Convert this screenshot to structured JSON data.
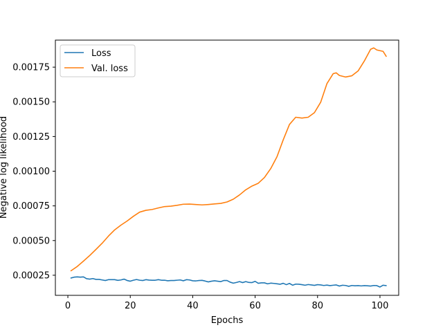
{
  "chart_data": {
    "type": "line",
    "title": "",
    "xlabel": "Epochs",
    "ylabel": "Negative log likelihood",
    "xlim": [
      -4,
      106
    ],
    "ylim": [
      0.000105,
      0.001945
    ],
    "xticks": [
      0,
      20,
      40,
      60,
      80,
      100
    ],
    "xtick_labels": [
      "0",
      "20",
      "40",
      "60",
      "80",
      "100"
    ],
    "yticks": [
      0.00025,
      0.0005,
      0.00075,
      0.001,
      0.00125,
      0.0015,
      0.00175
    ],
    "ytick_labels": [
      "0.00025",
      "0.00050",
      "0.00075",
      "0.00100",
      "0.00125",
      "0.00150",
      "0.00175"
    ],
    "grid": false,
    "legend_position": "top-left",
    "series": [
      {
        "name": "Loss",
        "color": "#1f77b4",
        "x": [
          1,
          2,
          3,
          4,
          5,
          6,
          7,
          8,
          9,
          10,
          11,
          12,
          13,
          14,
          15,
          16,
          17,
          18,
          19,
          20,
          21,
          22,
          23,
          24,
          25,
          26,
          27,
          28,
          29,
          30,
          31,
          32,
          33,
          34,
          35,
          36,
          37,
          38,
          39,
          40,
          41,
          42,
          43,
          44,
          45,
          46,
          47,
          48,
          49,
          50,
          51,
          52,
          53,
          54,
          55,
          56,
          57,
          58,
          59,
          60,
          61,
          62,
          63,
          64,
          65,
          66,
          67,
          68,
          69,
          70,
          71,
          72,
          73,
          74,
          75,
          76,
          77,
          78,
          79,
          80,
          81,
          82,
          83,
          84,
          85,
          86,
          87,
          88,
          89,
          90,
          91,
          92,
          93,
          94,
          95,
          96,
          97,
          98,
          99,
          100,
          101,
          102
        ],
        "y": [
          0.00023,
          0.000236,
          0.000238,
          0.000236,
          0.000238,
          0.000225,
          0.000222,
          0.000226,
          0.00022,
          0.00022,
          0.000216,
          0.000212,
          0.000218,
          0.000218,
          0.000218,
          0.000213,
          0.000216,
          0.000222,
          0.000212,
          0.000207,
          0.000214,
          0.000219,
          0.000214,
          0.000212,
          0.000218,
          0.000215,
          0.000214,
          0.000214,
          0.000218,
          0.000214,
          0.000214,
          0.00021,
          0.000212,
          0.000212,
          0.000214,
          0.000216,
          0.00021,
          0.000218,
          0.000216,
          0.00021,
          0.000209,
          0.000212,
          0.000213,
          0.000208,
          0.000202,
          0.000207,
          0.00021,
          0.000207,
          0.000204,
          0.000212,
          0.000212,
          0.0002,
          0.000193,
          0.000198,
          0.000204,
          0.000197,
          0.000204,
          0.000198,
          0.000197,
          0.000206,
          0.000192,
          0.000195,
          0.000195,
          0.000188,
          0.000193,
          0.000191,
          0.000188,
          0.000185,
          0.000192,
          0.000182,
          0.000191,
          0.000178,
          0.000186,
          0.000185,
          0.000182,
          0.000178,
          0.000183,
          0.00018,
          0.000177,
          0.000182,
          0.00018,
          0.000176,
          0.000179,
          0.000175,
          0.000178,
          0.00018,
          0.000172,
          0.000178,
          0.000176,
          0.00017,
          0.000176,
          0.000174,
          0.000175,
          0.000173,
          0.000175,
          0.000174,
          0.000172,
          0.000176,
          0.000175,
          0.000165,
          0.000178,
          0.000175
        ]
      },
      {
        "name": "Val. loss",
        "color": "#ff7f0e",
        "x": [
          1,
          3,
          5,
          7,
          9,
          11,
          13,
          15,
          17,
          19,
          21,
          23,
          25,
          27,
          29,
          31,
          33,
          35,
          37,
          39,
          41,
          43,
          45,
          47,
          49,
          51,
          53,
          55,
          57,
          59,
          61,
          63,
          65,
          67,
          69,
          71,
          73,
          75,
          77,
          79,
          81,
          83,
          85,
          86,
          87,
          89,
          91,
          93,
          95,
          97,
          98,
          99,
          101,
          102
        ],
        "y": [
          0.000282,
          0.000313,
          0.000352,
          0.000392,
          0.000436,
          0.000481,
          0.000532,
          0.000577,
          0.000611,
          0.000641,
          0.000675,
          0.000705,
          0.000718,
          0.000724,
          0.000735,
          0.000745,
          0.000748,
          0.000754,
          0.000762,
          0.000763,
          0.00076,
          0.000757,
          0.00076,
          0.000764,
          0.000768,
          0.000778,
          0.000798,
          0.000829,
          0.000866,
          0.000893,
          0.000913,
          0.000955,
          0.001019,
          0.001104,
          0.001226,
          0.001337,
          0.001389,
          0.001383,
          0.001389,
          0.001422,
          0.001497,
          0.001631,
          0.001703,
          0.001709,
          0.00169,
          0.001679,
          0.001688,
          0.001723,
          0.001795,
          0.001879,
          0.001889,
          0.001874,
          0.001864,
          0.001828
        ]
      }
    ]
  }
}
